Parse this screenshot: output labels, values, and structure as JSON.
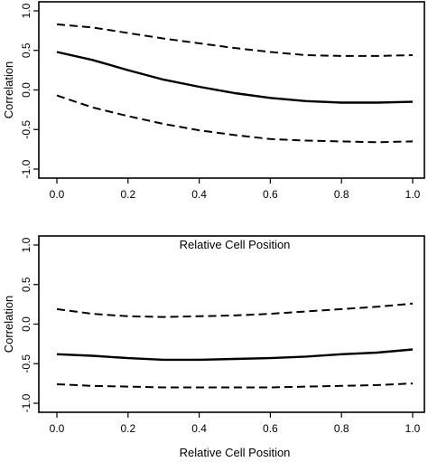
{
  "chart_data": [
    {
      "type": "line",
      "title": "",
      "xlabel": "Relative Cell Position",
      "ylabel": "Correlation",
      "xlim": [
        0.0,
        1.0
      ],
      "ylim": [
        -1.0,
        1.0
      ],
      "xticks": [
        "0.0",
        "0.2",
        "0.4",
        "0.6",
        "0.8",
        "1.0"
      ],
      "yticks": [
        "-1.0",
        "-0.5",
        "0.0",
        "0.5",
        "1.0"
      ],
      "grid": false,
      "x": [
        0.0,
        0.1,
        0.2,
        0.3,
        0.4,
        0.5,
        0.6,
        0.7,
        0.8,
        0.9,
        1.0
      ],
      "series": [
        {
          "style": "solid",
          "values": [
            0.48,
            0.38,
            0.25,
            0.13,
            0.04,
            -0.04,
            -0.1,
            -0.14,
            -0.16,
            -0.16,
            -0.15
          ]
        },
        {
          "style": "dashed",
          "values": [
            0.83,
            0.79,
            0.72,
            0.65,
            0.59,
            0.53,
            0.48,
            0.44,
            0.43,
            0.43,
            0.44
          ]
        },
        {
          "style": "dashed",
          "values": [
            -0.07,
            -0.22,
            -0.33,
            -0.43,
            -0.51,
            -0.57,
            -0.62,
            -0.64,
            -0.65,
            -0.66,
            -0.65
          ]
        }
      ]
    },
    {
      "type": "line",
      "title": "",
      "xlabel": "Relative Cell Position",
      "ylabel": "Correlation",
      "xlim": [
        0.0,
        1.0
      ],
      "ylim": [
        -1.0,
        1.0
      ],
      "xticks": [
        "0.0",
        "0.2",
        "0.4",
        "0.6",
        "0.8",
        "1.0"
      ],
      "yticks": [
        "-1.0",
        "-0.5",
        "0.0",
        "0.5",
        "1.0"
      ],
      "grid": false,
      "x": [
        0.0,
        0.1,
        0.2,
        0.3,
        0.4,
        0.5,
        0.6,
        0.7,
        0.8,
        0.9,
        1.0
      ],
      "series": [
        {
          "style": "solid",
          "values": [
            -0.38,
            -0.4,
            -0.43,
            -0.45,
            -0.45,
            -0.44,
            -0.43,
            -0.41,
            -0.38,
            -0.36,
            -0.32
          ]
        },
        {
          "style": "dashed",
          "values": [
            0.19,
            0.13,
            0.1,
            0.09,
            0.1,
            0.11,
            0.13,
            0.16,
            0.19,
            0.22,
            0.26
          ]
        },
        {
          "style": "dashed",
          "values": [
            -0.76,
            -0.78,
            -0.79,
            -0.8,
            -0.8,
            -0.8,
            -0.8,
            -0.79,
            -0.78,
            -0.77,
            -0.75
          ]
        }
      ]
    }
  ]
}
